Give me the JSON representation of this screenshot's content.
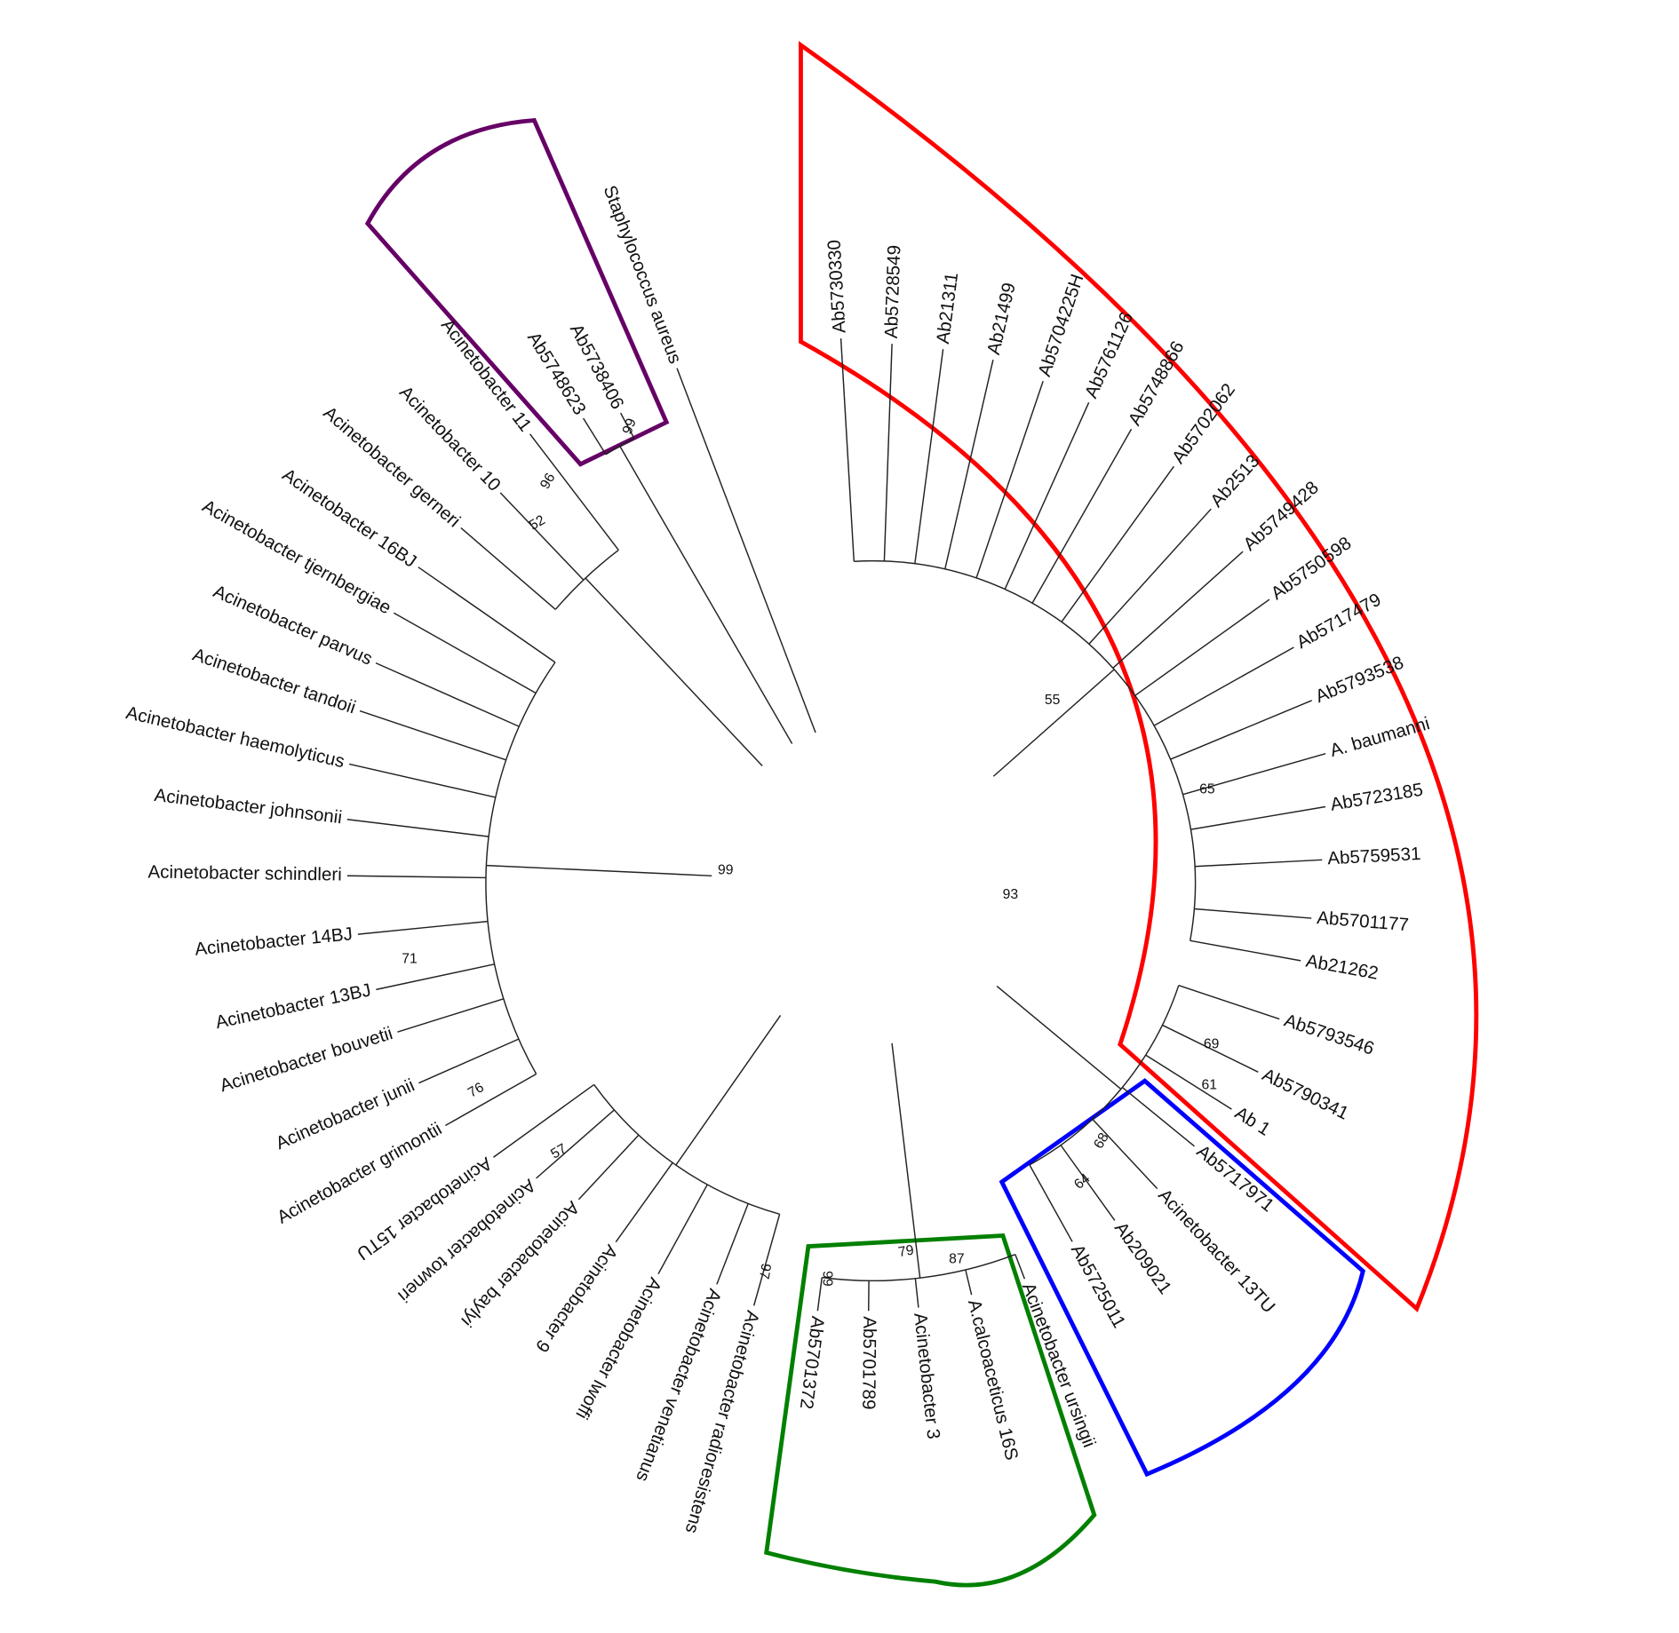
{
  "leaves": [
    "Staphylococcus aureus",
    "Ab5738406",
    "Ab5748623",
    "Acinetobacter 11",
    "Acinetobacter 10",
    "Acinetobacter gerneri",
    "Acinetobacter 16BJ",
    "Acinetobacter tjernbergiae",
    "Acinetobacter parvus",
    "Acinetobacter tandoii",
    "Acinetobacter haemolyticus",
    "Acinetobacter johnsonii",
    "Acinetobacter schindleri",
    "Acinetobacter 14BJ",
    "Acinetobacter 13BJ",
    "Acinetobacter bouvetii",
    "Acinetobacter junii",
    "Acinetobacter grimontii",
    "Acinetobacter 15TU",
    "Acinetobacter towneri",
    "Acinetobacter baylyi",
    "Acinetobacter 9",
    "Acinetobacter lwoffi",
    "Acinetobacter venetianus",
    "Acinetobacter radioresistens",
    "Ab5701372",
    "Ab5701789",
    "Acinetobacter 3",
    "A.calcoaceticus 16S",
    "Acinetobacter ursingii",
    "Ab5725011",
    "Ab209021",
    "Acinetobacter 13TU",
    "Ab5717971",
    "Ab 1",
    "Ab5790341",
    "Ab5793546",
    "Ab21262",
    "Ab5701177",
    "Ab5759531",
    "Ab5723185",
    "A. baumanni",
    "Ab5793538",
    "Ab5717479",
    "Ab5750598",
    "Ab5749428",
    "Ab2513",
    "Ab5702062",
    "Ab5748866",
    "Ab5761126",
    "Ab5704225H",
    "Ab21499",
    "Ab21311",
    "Ab5728549",
    "Ab5730330"
  ],
  "bootstrap": [
    99,
    96,
    52,
    99,
    71,
    76,
    57,
    97,
    79,
    99,
    87,
    68,
    64,
    61,
    69,
    93,
    55,
    65
  ]
}
